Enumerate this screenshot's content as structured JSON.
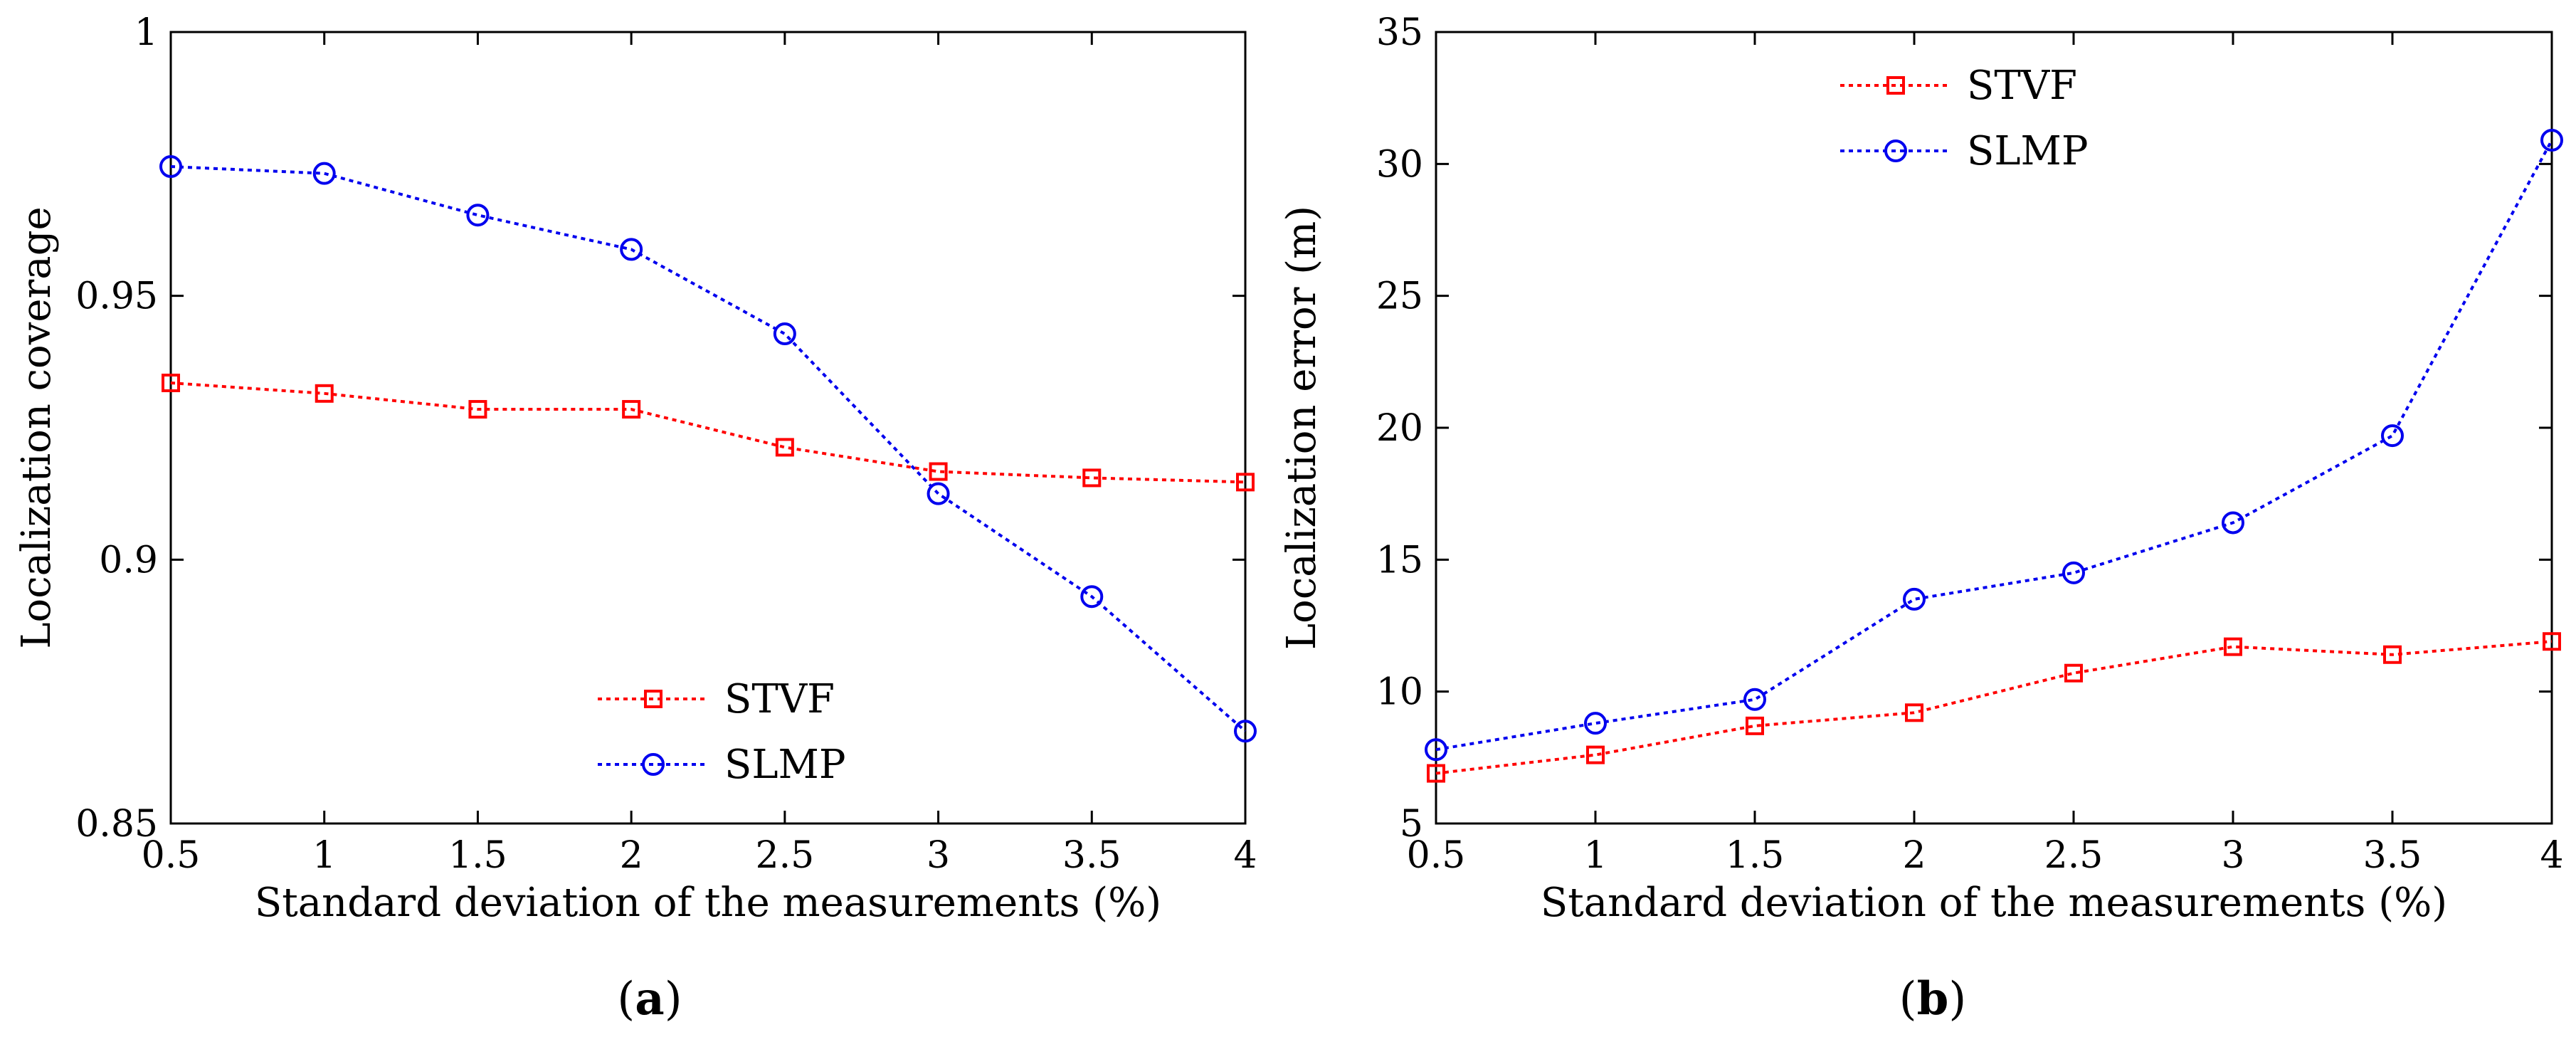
{
  "chart_data": [
    {
      "id": "a",
      "type": "line",
      "panel_label": {
        "open": "(",
        "letter": "a",
        "close": ")"
      },
      "xlabel": "Standard deviation of the measurements (%)",
      "ylabel": "Localization coverage",
      "xlim": [
        0.5,
        4
      ],
      "ylim": [
        0.85,
        1
      ],
      "xticks": [
        0.5,
        1,
        1.5,
        2,
        2.5,
        3,
        3.5,
        4
      ],
      "xtick_labels": [
        "0.5",
        "1",
        "1.5",
        "2",
        "2.5",
        "3",
        "3.5",
        "4"
      ],
      "yticks": [
        0.85,
        0.9,
        0.95,
        1
      ],
      "ytick_labels": [
        "0.85",
        "0.9",
        "0.95",
        "1"
      ],
      "legend_position": "bottom-center",
      "x": [
        0.5,
        1,
        1.5,
        2,
        2.5,
        3,
        3.5,
        4
      ],
      "series": [
        {
          "name": "STVF",
          "color": "#ff0000",
          "marker": "square",
          "values": [
            0.9335,
            0.9315,
            0.9285,
            0.9285,
            0.9213,
            0.9167,
            0.9155,
            0.9147
          ]
        },
        {
          "name": "SLMP",
          "color": "#0000ee",
          "marker": "circle",
          "values": [
            0.9745,
            0.9732,
            0.9653,
            0.9588,
            0.9428,
            0.9125,
            0.893,
            0.8675
          ]
        }
      ]
    },
    {
      "id": "b",
      "type": "line",
      "panel_label": {
        "open": "(",
        "letter": "b",
        "close": ")"
      },
      "xlabel": "Standard deviation of the measurements (%)",
      "ylabel": "Localization error (m)",
      "xlim": [
        0.5,
        4
      ],
      "ylim": [
        5,
        35
      ],
      "xticks": [
        0.5,
        1,
        1.5,
        2,
        2.5,
        3,
        3.5,
        4
      ],
      "xtick_labels": [
        "0.5",
        "1",
        "1.5",
        "2",
        "2.5",
        "3",
        "3.5",
        "4"
      ],
      "yticks": [
        5,
        10,
        15,
        20,
        25,
        30,
        35
      ],
      "ytick_labels": [
        "5",
        "10",
        "15",
        "20",
        "25",
        "30",
        "35"
      ],
      "legend_position": "top-center",
      "x": [
        0.5,
        1,
        1.5,
        2,
        2.5,
        3,
        3.5,
        4
      ],
      "series": [
        {
          "name": "STVF",
          "color": "#ff0000",
          "marker": "square",
          "values": [
            6.9,
            7.6,
            8.7,
            9.2,
            10.7,
            11.7,
            11.4,
            11.9
          ]
        },
        {
          "name": "SLMP",
          "color": "#0000ee",
          "marker": "circle",
          "values": [
            7.8,
            8.8,
            9.7,
            13.5,
            14.5,
            16.4,
            19.7,
            30.9
          ]
        }
      ]
    }
  ]
}
